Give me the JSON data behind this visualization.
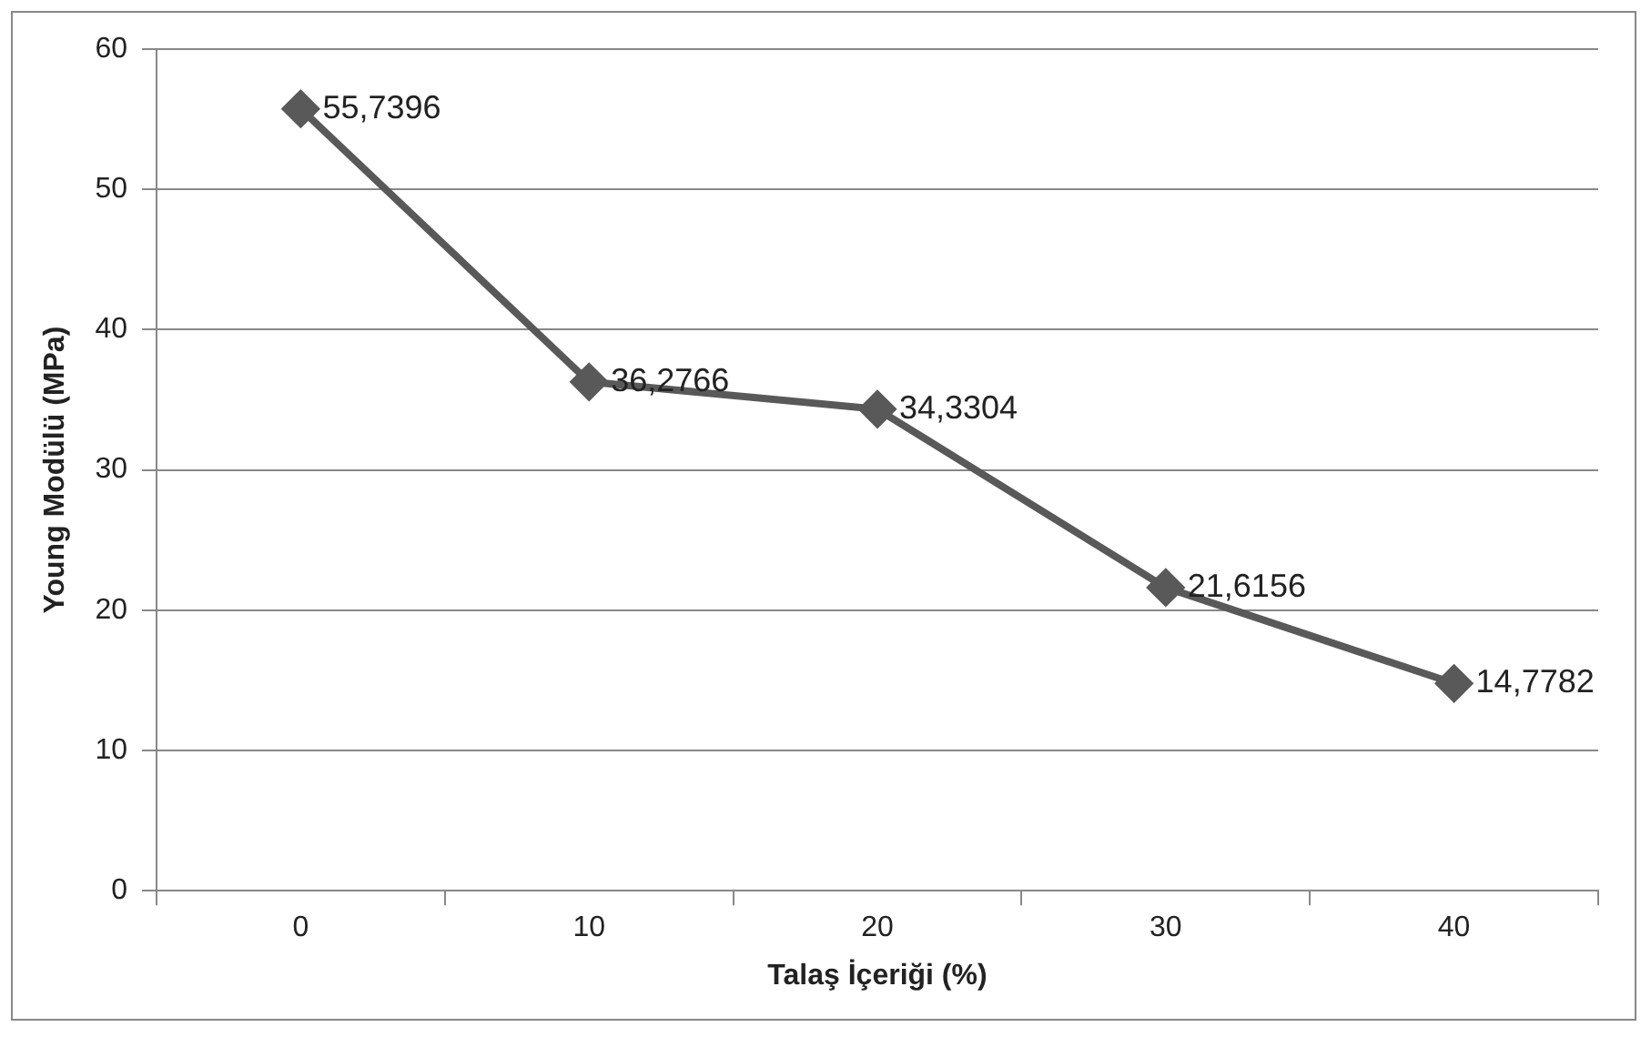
{
  "chart_data": {
    "type": "line",
    "xlabel": "Talaş İçeriği (%)",
    "ylabel": "Young Modülü (MPa)",
    "categories": [
      "0",
      "10",
      "20",
      "30",
      "40"
    ],
    "series": [
      {
        "color": "#595959",
        "values": [
          55.7396,
          36.2766,
          34.3304,
          21.6156,
          14.7782
        ],
        "value_labels": [
          "55,7396",
          "36,2766",
          "34,3304",
          "21,6156",
          "14,7782"
        ]
      }
    ],
    "ylim": [
      0,
      60
    ],
    "yticks": [
      0,
      10,
      20,
      30,
      40,
      50,
      60
    ],
    "grid": "y",
    "legend": false,
    "marker": "diamond",
    "line_style": "solid"
  }
}
